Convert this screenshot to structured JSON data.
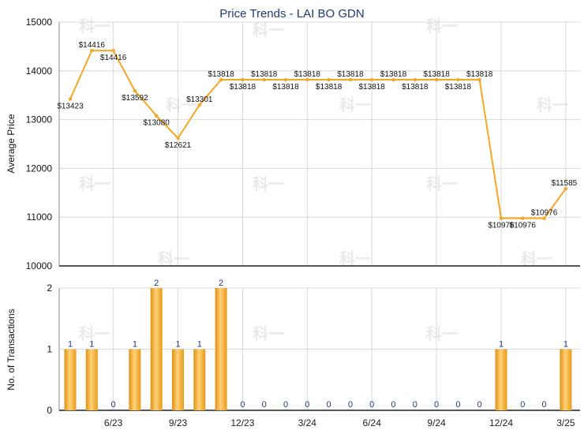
{
  "chart_data": [
    {
      "type": "line",
      "title": "Price Trends - LAI BO GDN",
      "ylabel": "Average Price",
      "ylim": [
        10000,
        15000
      ],
      "yticks": [
        "10000",
        "11000",
        "12000",
        "13000",
        "14000",
        "15000"
      ],
      "x": [
        "2023-04",
        "2023-05",
        "2023-06",
        "2023-07",
        "2023-08",
        "2023-09",
        "2023-10",
        "2023-11",
        "2023-12",
        "2024-01",
        "2024-02",
        "2024-03",
        "2024-04",
        "2024-05",
        "2024-06",
        "2024-07",
        "2024-08",
        "2024-09",
        "2024-10",
        "2024-11",
        "2024-12",
        "2025-01",
        "2025-02",
        "2025-03"
      ],
      "values": [
        13423,
        14416,
        14416,
        13592,
        13080,
        12621,
        13301,
        13818,
        13818,
        13818,
        13818,
        13818,
        13818,
        13818,
        13818,
        13818,
        13818,
        13818,
        13818,
        13818,
        10976,
        10976,
        10976,
        11585
      ],
      "point_labels": [
        "$13423",
        "$14416",
        "$14416",
        "$13592",
        "$13080",
        "$12621",
        "$13301",
        "$13818",
        "$13818",
        "$13818",
        "$13818",
        "$13818",
        "$13818",
        "$13818",
        "$13818",
        "$13818",
        "$13818",
        "$13818",
        "$13818",
        "$13818",
        "$10976",
        "$10976",
        "$10976",
        "$11585"
      ],
      "line_color": "#f5a623",
      "grid": true
    },
    {
      "type": "bar",
      "ylabel": "No. of Transactions",
      "ylim": [
        0,
        2
      ],
      "yticks": [
        "0",
        "1",
        "2"
      ],
      "categories": [
        "2023-04",
        "2023-05",
        "2023-06",
        "2023-07",
        "2023-08",
        "2023-09",
        "2023-10",
        "2023-11",
        "2023-12",
        "2024-01",
        "2024-02",
        "2024-03",
        "2024-04",
        "2024-05",
        "2024-06",
        "2024-07",
        "2024-08",
        "2024-09",
        "2024-10",
        "2024-11",
        "2024-12",
        "2025-01",
        "2025-02",
        "2025-03"
      ],
      "values": [
        1,
        1,
        0,
        1,
        2,
        1,
        1,
        2,
        0,
        0,
        0,
        0,
        0,
        0,
        0,
        0,
        0,
        0,
        0,
        0,
        1,
        0,
        0,
        1
      ],
      "bar_labels": [
        "1",
        "1",
        "0",
        "1",
        "2",
        "1",
        "1",
        "2",
        "0",
        "0",
        "0",
        "0",
        "0",
        "0",
        "0",
        "0",
        "0",
        "0",
        "0",
        "0",
        "1",
        "0",
        "0",
        "1"
      ],
      "xticks": [
        {
          "label": "6/23",
          "x": "2023-06"
        },
        {
          "label": "9/23",
          "x": "2023-09"
        },
        {
          "label": "12/23",
          "x": "2023-12"
        },
        {
          "label": "3/24",
          "x": "2024-03"
        },
        {
          "label": "6/24",
          "x": "2024-06"
        },
        {
          "label": "9/24",
          "x": "2024-09"
        },
        {
          "label": "12/24",
          "x": "2024-12"
        },
        {
          "label": "3/25",
          "x": "2025-03"
        }
      ],
      "bar_color": "#f5a623",
      "grid": true
    }
  ]
}
